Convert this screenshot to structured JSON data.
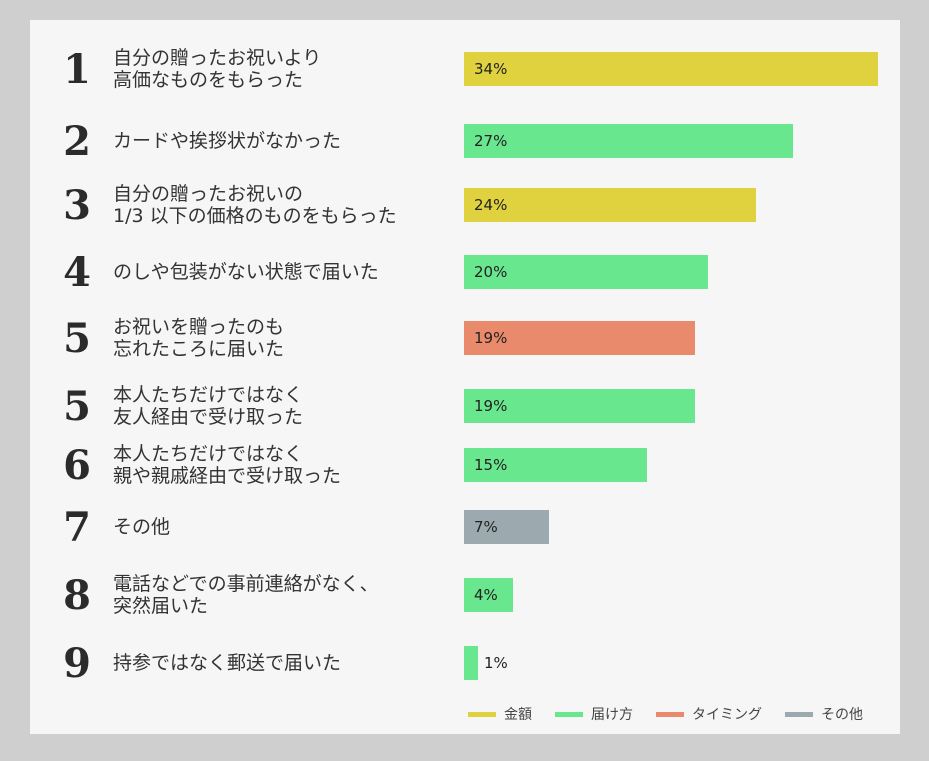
{
  "chart_data": {
    "type": "bar",
    "orientation": "horizontal",
    "xlim": [
      0,
      34
    ],
    "items": [
      {
        "rank": "1",
        "label": "自分の贈ったお祝いより\n高価なものをもらった",
        "value": 34,
        "value_label": "34%",
        "category": "金額"
      },
      {
        "rank": "2",
        "label": "カードや挨拶状がなかった",
        "value": 27,
        "value_label": "27%",
        "category": "届け方"
      },
      {
        "rank": "3",
        "label": "自分の贈ったお祝いの\n1/3 以下の価格のものをもらった",
        "value": 24,
        "value_label": "24%",
        "category": "金額"
      },
      {
        "rank": "4",
        "label": "のしや包装がない状態で届いた",
        "value": 20,
        "value_label": "20%",
        "category": "届け方"
      },
      {
        "rank": "5",
        "label": "お祝いを贈ったのも\n忘れたころに届いた",
        "value": 19,
        "value_label": "19%",
        "category": "タイミング"
      },
      {
        "rank": "5",
        "label": "本人たちだけではなく\n友人経由で受け取った",
        "value": 19,
        "value_label": "19%",
        "category": "届け方"
      },
      {
        "rank": "6",
        "label": "本人たちだけではなく\n親や親戚経由で受け取った",
        "value": 15,
        "value_label": "15%",
        "category": "届け方"
      },
      {
        "rank": "7",
        "label": "その他",
        "value": 7,
        "value_label": "7%",
        "category": "その他"
      },
      {
        "rank": "8",
        "label": "電話などでの事前連絡がなく、\n突然届いた",
        "value": 4,
        "value_label": "4%",
        "category": "届け方"
      },
      {
        "rank": "9",
        "label": "持参ではなく郵送で届いた",
        "value": 1,
        "value_label": "1%",
        "category": "届け方"
      }
    ],
    "legend": [
      {
        "name": "金額",
        "color": "#dfd23e"
      },
      {
        "name": "届け方",
        "color": "#68e78f"
      },
      {
        "name": "タイミング",
        "color": "#e88a6b"
      },
      {
        "name": "その他",
        "color": "#9caaaf"
      }
    ],
    "legend_position": "bottom-right"
  }
}
